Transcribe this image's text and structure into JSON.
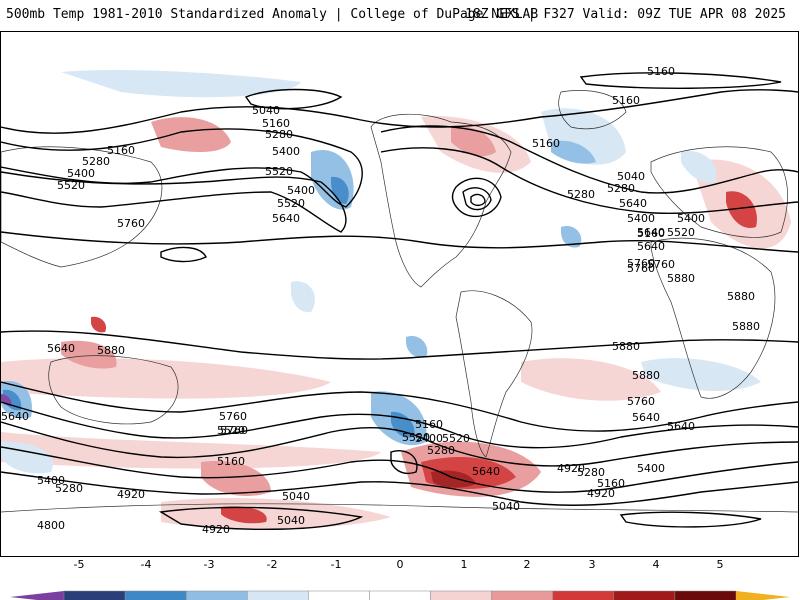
{
  "header": {
    "title": "500mb Temp 1981-2010 Standardized Anomaly | College of DuPage NEXLAB",
    "run_info": "18Z GFS | F327 Valid: 09Z TUE APR 08 2025"
  },
  "colors": {
    "anomaly_scale": [
      "#7b3fa0",
      "#2a3f7a",
      "#3f88c8",
      "#8fbde4",
      "#d6e6f4",
      "#ffffff",
      "#ffffff",
      "#f6d3d3",
      "#e89a9a",
      "#d23a3a",
      "#a01a1a",
      "#6a0a0a",
      "#f0b020"
    ],
    "land_outline": "#333333",
    "contour": "#000000"
  },
  "colorbar": {
    "tick_labels": [
      "-5",
      "-4",
      "-3",
      "-2",
      "-1",
      "0",
      "1",
      "2",
      "3",
      "4",
      "5"
    ]
  },
  "contour_labels": [
    "5160",
    "5160",
    "5040",
    "5160",
    "5280",
    "5400",
    "5520",
    "5400",
    "5520",
    "5640",
    "5760",
    "5160",
    "5280",
    "5400",
    "5520",
    "5160",
    "5040",
    "5640",
    "5760",
    "5280",
    "5400",
    "5520",
    "5640",
    "5760",
    "5880",
    "5880",
    "5880",
    "5880",
    "5880",
    "5640",
    "5760",
    "5640",
    "5760",
    "5520",
    "5640",
    "5400",
    "5520",
    "5280",
    "5160",
    "5160",
    "5400",
    "5280",
    "5040",
    "4920",
    "4800",
    "5040",
    "4920",
    "4920",
    "5040",
    "4920",
    "5160",
    "5280",
    "5400",
    "5640",
    "5520",
    "5640",
    "5760",
    "4800",
    "5640",
    "5760",
    "5280",
    "5160",
    "5400",
    "4920",
    "5880"
  ]
}
